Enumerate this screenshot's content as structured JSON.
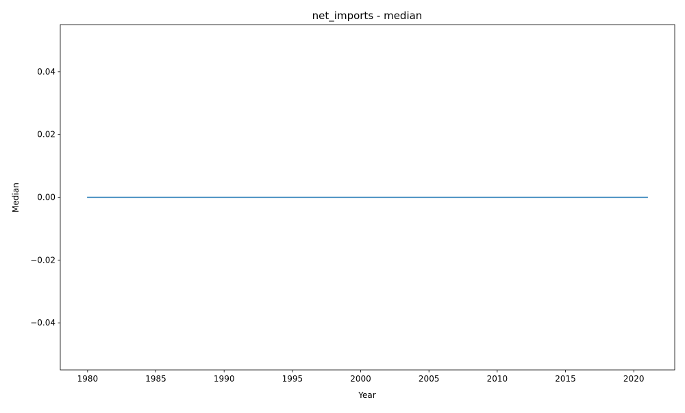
{
  "chart_data": {
    "type": "line",
    "title": "net_imports - median",
    "xlabel": "Year",
    "ylabel": "Median",
    "xlim": [
      1978,
      2023
    ],
    "ylim": [
      -0.055,
      0.055
    ],
    "xticks": [
      1980,
      1985,
      1990,
      1995,
      2000,
      2005,
      2010,
      2015,
      2020
    ],
    "yticks": [
      -0.04,
      -0.02,
      0.0,
      0.02,
      0.04
    ],
    "ytick_labels": [
      "−0.04",
      "−0.02",
      "0.00",
      "0.02",
      "0.04"
    ],
    "grid": false,
    "series": [
      {
        "color": "#1f77b4",
        "x": [
          1980,
          1981,
          1982,
          1983,
          1984,
          1985,
          1986,
          1987,
          1988,
          1989,
          1990,
          1991,
          1992,
          1993,
          1994,
          1995,
          1996,
          1997,
          1998,
          1999,
          2000,
          2001,
          2002,
          2003,
          2004,
          2005,
          2006,
          2007,
          2008,
          2009,
          2010,
          2011,
          2012,
          2013,
          2014,
          2015,
          2016,
          2017,
          2018,
          2019,
          2020,
          2021
        ],
        "values": [
          0,
          0,
          0,
          0,
          0,
          0,
          0,
          0,
          0,
          0,
          0,
          0,
          0,
          0,
          0,
          0,
          0,
          0,
          0,
          0,
          0,
          0,
          0,
          0,
          0,
          0,
          0,
          0,
          0,
          0,
          0,
          0,
          0,
          0,
          0,
          0,
          0,
          0,
          0,
          0,
          0,
          0
        ]
      }
    ]
  }
}
